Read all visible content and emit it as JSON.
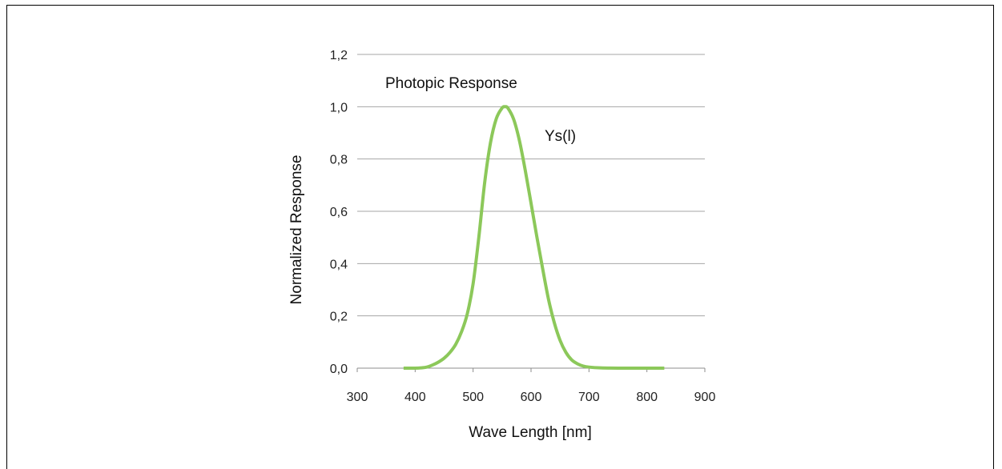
{
  "chart_data": {
    "type": "line",
    "xlabel": "Wave Length [nm]",
    "ylabel": "Normalized Response",
    "xlim": [
      300,
      900
    ],
    "ylim": [
      0,
      1.2
    ],
    "x_ticks": [
      "300",
      "400",
      "500",
      "600",
      "700",
      "800",
      "900"
    ],
    "y_ticks": [
      "0,0",
      "0,2",
      "0,4",
      "0,6",
      "0,8",
      "1,0",
      "1,2"
    ],
    "grid": true,
    "annotations": [
      "Photopic Response",
      "Ys(l)"
    ],
    "series": [
      {
        "color": "#8cc85a",
        "x": [
          380,
          400,
          410,
          420,
          430,
          440,
          450,
          460,
          470,
          480,
          490,
          500,
          510,
          520,
          530,
          540,
          550,
          555,
          560,
          570,
          580,
          590,
          600,
          610,
          620,
          630,
          640,
          650,
          660,
          670,
          680,
          690,
          700,
          720,
          750,
          800,
          830
        ],
        "y": [
          0.0,
          0.0,
          0.001,
          0.004,
          0.012,
          0.023,
          0.038,
          0.06,
          0.091,
          0.139,
          0.208,
          0.323,
          0.503,
          0.71,
          0.862,
          0.954,
          0.995,
          1.0,
          0.995,
          0.952,
          0.87,
          0.757,
          0.631,
          0.503,
          0.381,
          0.265,
          0.175,
          0.107,
          0.061,
          0.032,
          0.017,
          0.008,
          0.004,
          0.001,
          0.0,
          0.0,
          0.0
        ]
      }
    ]
  }
}
